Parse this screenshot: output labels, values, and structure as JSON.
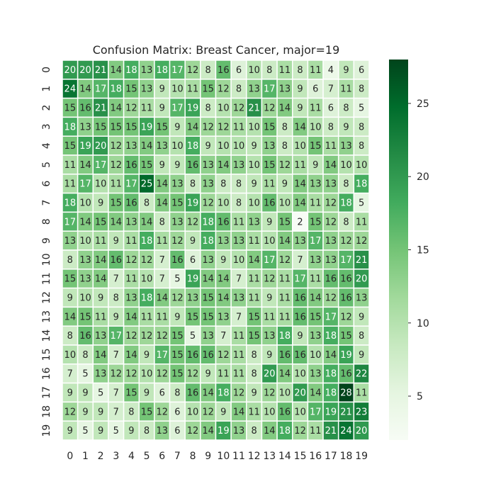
{
  "chart_data": {
    "type": "heatmap",
    "title": "Confusion Matrix: Breast Cancer, major=19",
    "x_tick_labels": [
      "0",
      "1",
      "2",
      "3",
      "4",
      "5",
      "6",
      "7",
      "8",
      "9",
      "10",
      "11",
      "12",
      "13",
      "14",
      "15",
      "16",
      "17",
      "18",
      "19"
    ],
    "y_tick_labels": [
      "0",
      "1",
      "2",
      "3",
      "4",
      "5",
      "6",
      "7",
      "8",
      "9",
      "10",
      "11",
      "12",
      "13",
      "14",
      "15",
      "16",
      "17",
      "18",
      "19"
    ],
    "values": [
      [
        20,
        20,
        21,
        14,
        18,
        13,
        18,
        17,
        12,
        8,
        16,
        6,
        10,
        8,
        11,
        8,
        11,
        4,
        9,
        6
      ],
      [
        24,
        14,
        17,
        18,
        15,
        13,
        9,
        10,
        11,
        15,
        12,
        8,
        13,
        17,
        13,
        9,
        6,
        7,
        11,
        8
      ],
      [
        15,
        16,
        21,
        14,
        12,
        11,
        9,
        17,
        19,
        8,
        10,
        12,
        21,
        12,
        14,
        9,
        11,
        6,
        8,
        5
      ],
      [
        18,
        13,
        15,
        15,
        15,
        19,
        15,
        9,
        14,
        12,
        12,
        11,
        10,
        15,
        8,
        14,
        10,
        8,
        9,
        8
      ],
      [
        15,
        19,
        20,
        12,
        13,
        14,
        13,
        10,
        18,
        9,
        10,
        10,
        9,
        13,
        8,
        10,
        15,
        11,
        13,
        8
      ],
      [
        11,
        14,
        17,
        12,
        16,
        15,
        9,
        9,
        16,
        13,
        14,
        13,
        10,
        15,
        12,
        11,
        9,
        14,
        10,
        10
      ],
      [
        11,
        17,
        10,
        11,
        17,
        25,
        14,
        13,
        8,
        13,
        8,
        8,
        9,
        11,
        9,
        14,
        13,
        13,
        8,
        18
      ],
      [
        18,
        10,
        9,
        15,
        16,
        8,
        14,
        15,
        19,
        12,
        10,
        8,
        10,
        16,
        10,
        14,
        11,
        12,
        18,
        5
      ],
      [
        17,
        14,
        15,
        14,
        13,
        14,
        8,
        13,
        12,
        18,
        16,
        11,
        13,
        9,
        15,
        2,
        15,
        12,
        8,
        11
      ],
      [
        13,
        10,
        11,
        9,
        11,
        18,
        11,
        12,
        9,
        18,
        13,
        13,
        11,
        10,
        14,
        13,
        17,
        13,
        12,
        12
      ],
      [
        8,
        13,
        14,
        16,
        12,
        12,
        7,
        16,
        6,
        13,
        9,
        10,
        14,
        17,
        12,
        7,
        13,
        13,
        17,
        21
      ],
      [
        15,
        13,
        14,
        7,
        11,
        10,
        7,
        5,
        19,
        14,
        14,
        7,
        11,
        12,
        11,
        17,
        11,
        16,
        16,
        20
      ],
      [
        9,
        10,
        9,
        8,
        13,
        18,
        14,
        12,
        13,
        15,
        14,
        13,
        11,
        9,
        11,
        16,
        14,
        12,
        16,
        13
      ],
      [
        14,
        15,
        11,
        9,
        14,
        11,
        11,
        9,
        15,
        15,
        13,
        7,
        15,
        11,
        11,
        16,
        15,
        17,
        12,
        9
      ],
      [
        8,
        16,
        13,
        17,
        12,
        12,
        12,
        15,
        5,
        13,
        7,
        11,
        15,
        13,
        18,
        9,
        13,
        18,
        15,
        8
      ],
      [
        10,
        8,
        14,
        7,
        14,
        9,
        17,
        15,
        16,
        16,
        12,
        11,
        8,
        9,
        16,
        16,
        10,
        14,
        19,
        9
      ],
      [
        7,
        5,
        13,
        12,
        12,
        10,
        12,
        15,
        12,
        9,
        11,
        11,
        8,
        20,
        14,
        10,
        13,
        18,
        16,
        22
      ],
      [
        9,
        9,
        5,
        7,
        15,
        9,
        6,
        8,
        16,
        14,
        18,
        12,
        9,
        12,
        10,
        20,
        14,
        18,
        28,
        11
      ],
      [
        12,
        9,
        9,
        7,
        8,
        15,
        12,
        6,
        10,
        12,
        9,
        14,
        11,
        10,
        16,
        10,
        17,
        19,
        21,
        23
      ],
      [
        9,
        5,
        9,
        5,
        9,
        8,
        13,
        6,
        12,
        14,
        19,
        13,
        8,
        14,
        18,
        12,
        11,
        21,
        24,
        20
      ]
    ],
    "colorbar": {
      "vmin": 2,
      "vmax": 28,
      "ticks": [
        5,
        10,
        15,
        20,
        25
      ]
    },
    "colormap": "Greens",
    "gridlines": "white cell borders",
    "legend": "colorbar-right"
  }
}
